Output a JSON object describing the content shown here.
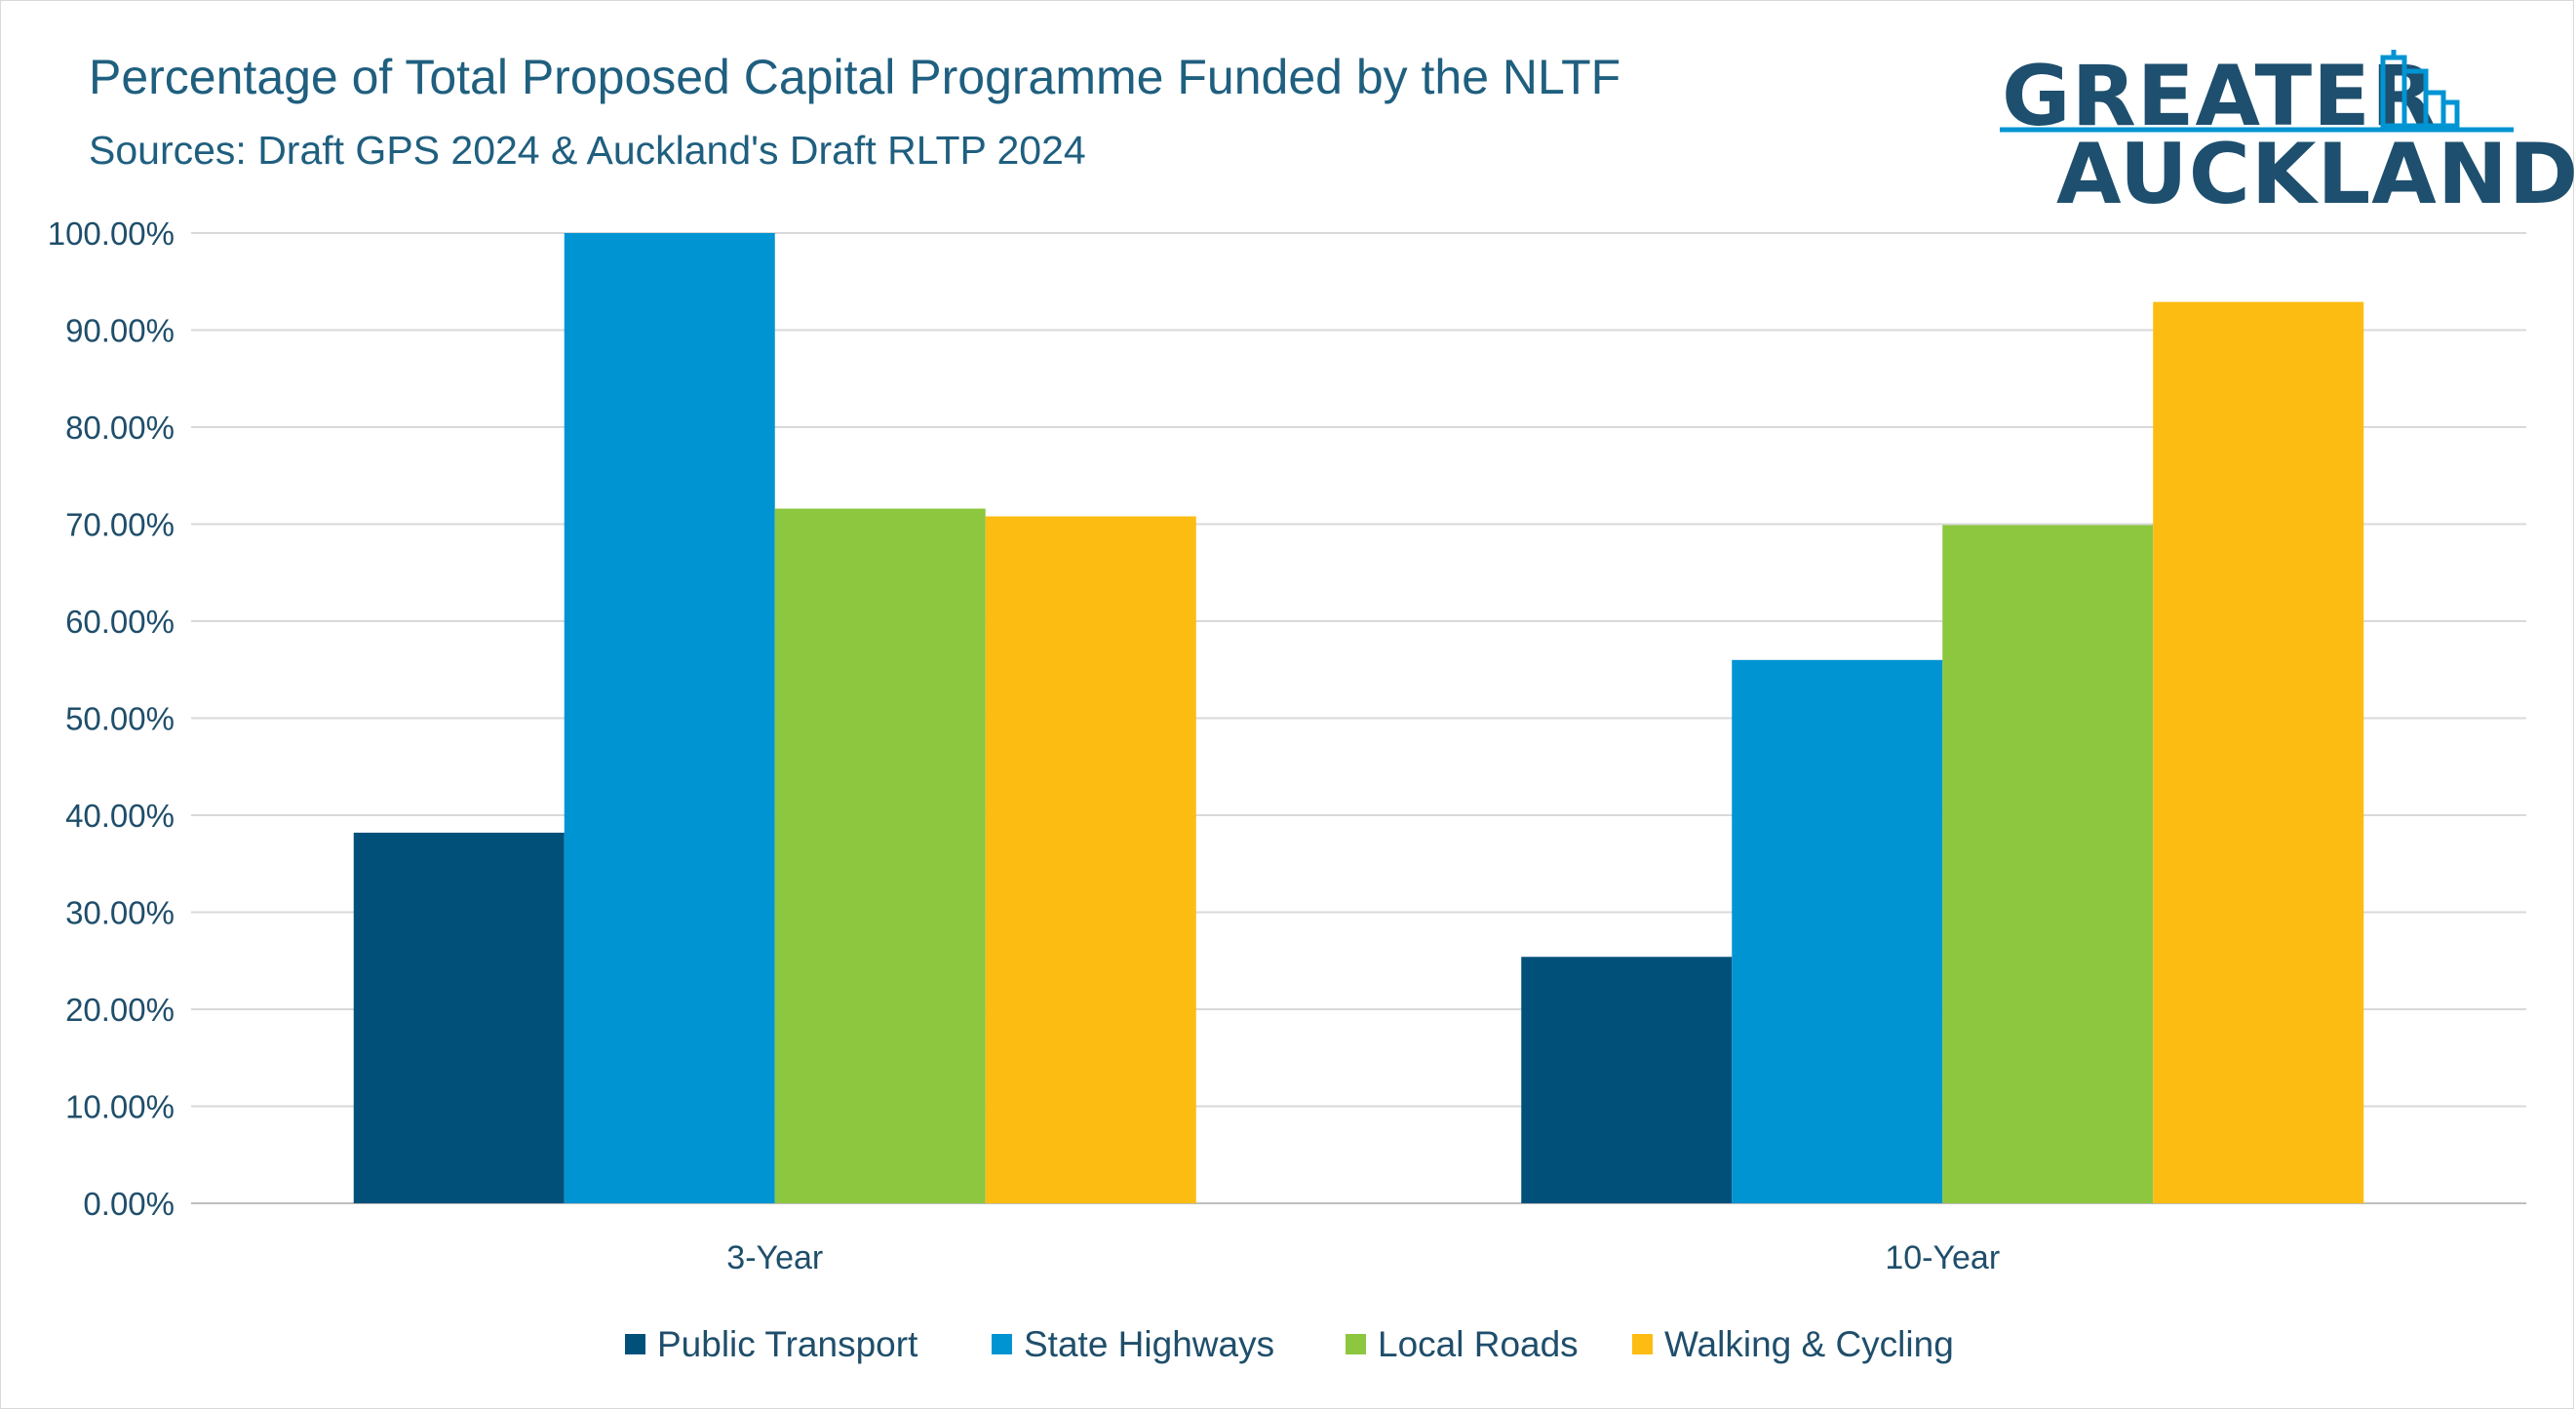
{
  "chart_data": {
    "type": "bar",
    "title": "Percentage of Total Proposed Capital Programme Funded by the NLTF",
    "subtitle": "Sources: Draft GPS 2024 & Auckland's Draft RLTP 2024",
    "categories": [
      "3-Year",
      "10-Year"
    ],
    "series": [
      {
        "name": "Public Transport",
        "color": "#00507a",
        "values": [
          38.2,
          25.4
        ]
      },
      {
        "name": "State Highways",
        "color": "#0094d3",
        "values": [
          100.0,
          56.0
        ]
      },
      {
        "name": "Local Roads",
        "color": "#8dc63f",
        "values": [
          71.6,
          69.9
        ]
      },
      {
        "name": "Walking & Cycling",
        "color": "#fdbc12",
        "values": [
          70.8,
          92.9
        ]
      }
    ],
    "yticks": [
      "0.00%",
      "10.00%",
      "20.00%",
      "30.00%",
      "40.00%",
      "50.00%",
      "60.00%",
      "70.00%",
      "80.00%",
      "90.00%",
      "100.00%"
    ],
    "ylim": [
      0,
      100
    ],
    "grid": true,
    "legend_position": "bottom"
  },
  "logo": {
    "line1": "GREATER",
    "line2": "AUCKLAND",
    "color": "#1e4f6e",
    "accent": "#0094d3"
  }
}
